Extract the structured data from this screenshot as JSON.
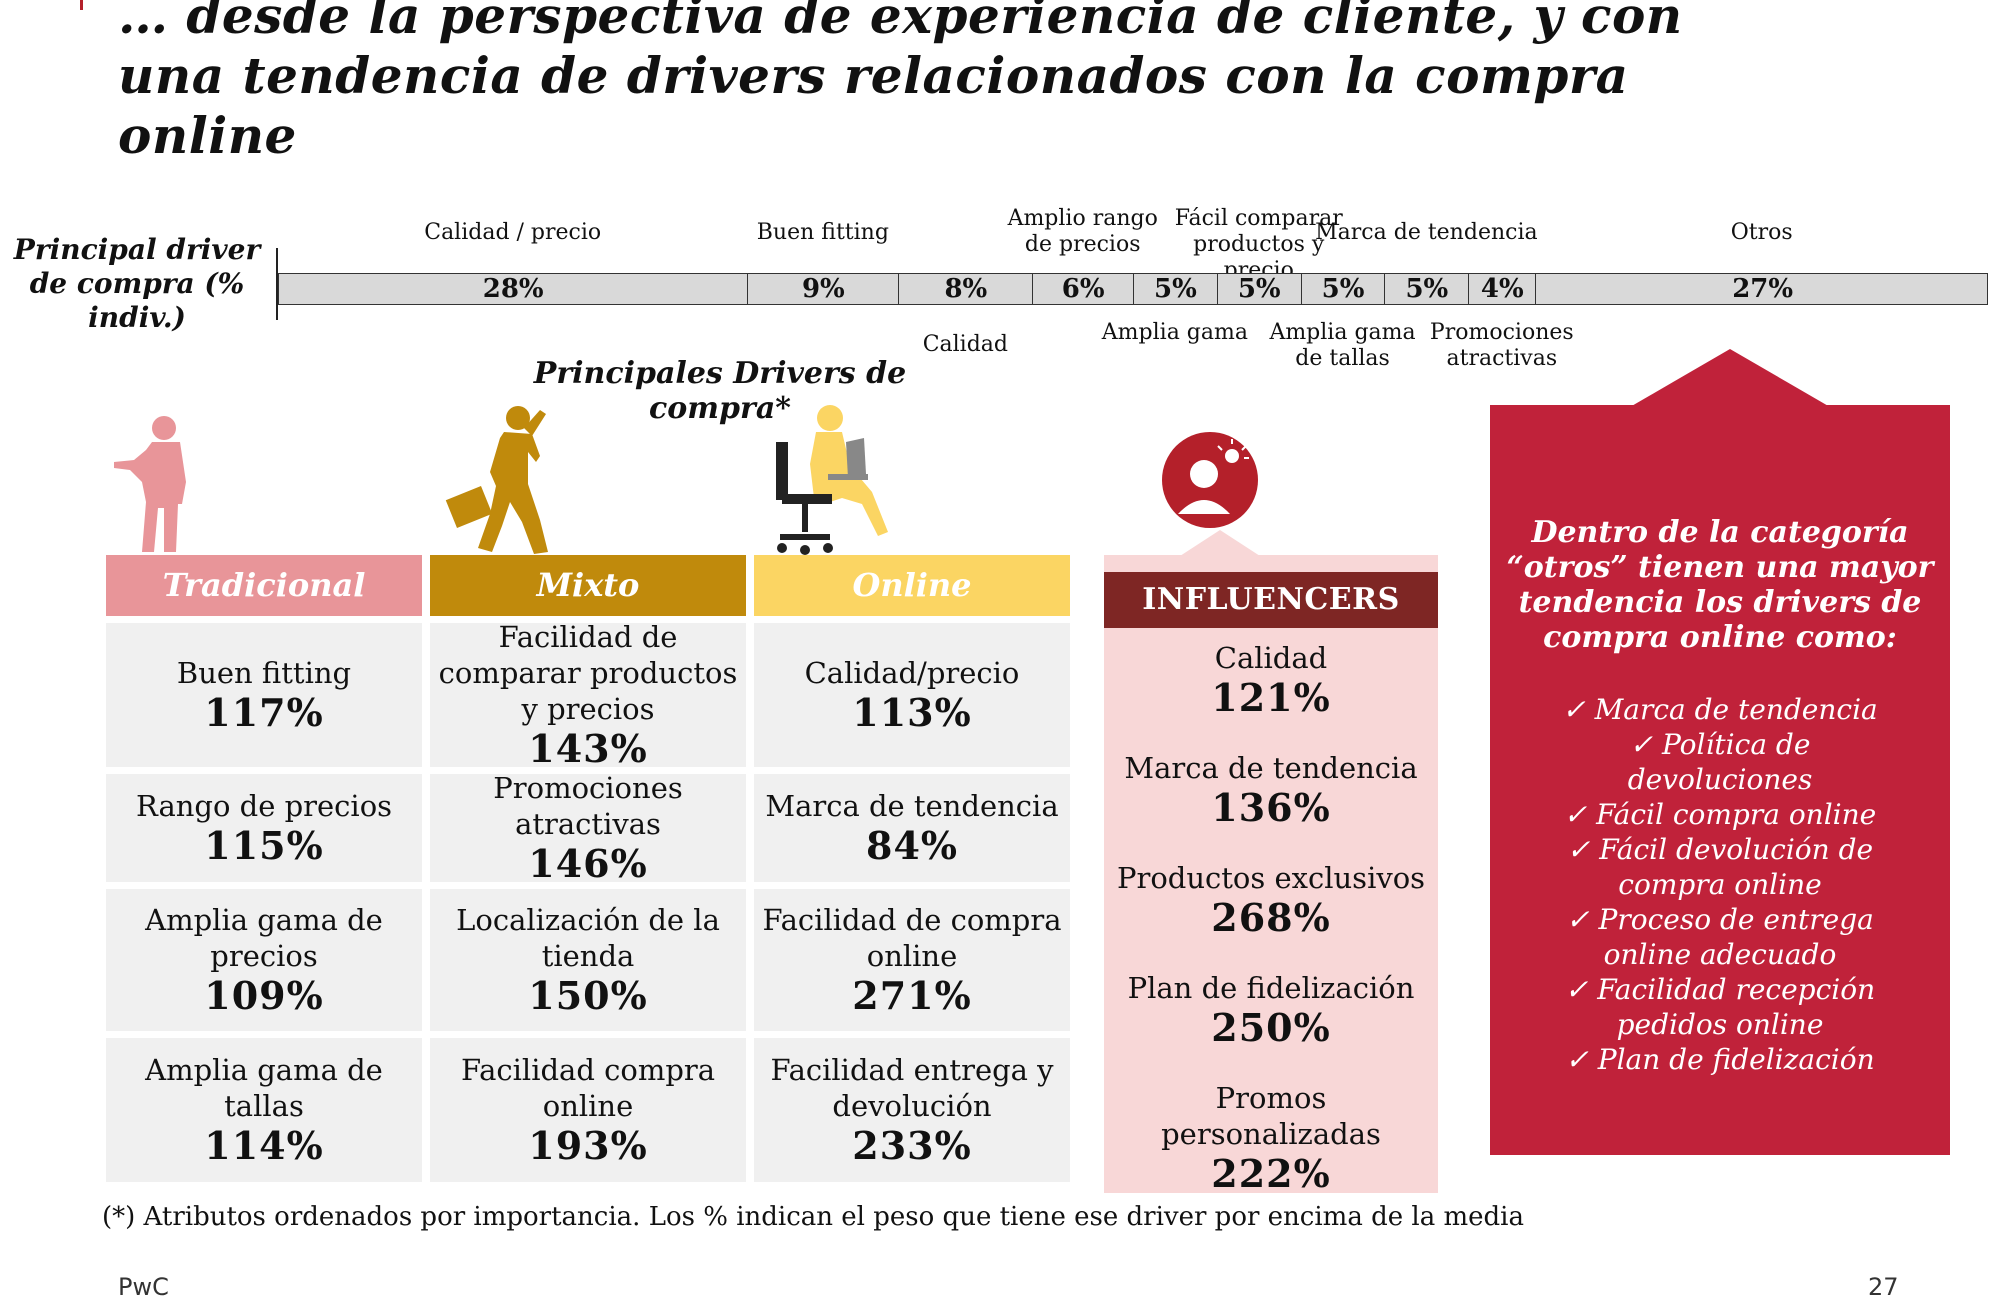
{
  "title": "… desde la perspectiva de experiencia de cliente, y con una tendencia de drivers relacionados con la compra online",
  "bar_label": "Principal driver de compra (% indiv.)",
  "subtitle": "Principales Drivers de compra*",
  "chart_data": {
    "type": "bar",
    "orientation": "horizontal-stacked",
    "categories": [
      "Calidad / precio",
      "Buen fitting",
      "Calidad",
      "Amplio rango de precios",
      "Amplia gama",
      "Fácil comparar productos y precio",
      "Amplia gama de tallas",
      "Marca de tendencia",
      "Promociones atractivas",
      "Otros"
    ],
    "values": [
      28,
      9,
      8,
      6,
      5,
      5,
      5,
      5,
      4,
      27
    ],
    "value_labels": [
      "28%",
      "9%",
      "8%",
      "6%",
      "5%",
      "5%",
      "5%",
      "5%",
      "4%",
      "27%"
    ],
    "label_side": [
      "top",
      "top",
      "bottom",
      "top",
      "bottom",
      "top",
      "bottom",
      "top",
      "bottom",
      "top"
    ],
    "bar_color": "#d9d9d9"
  },
  "segments": [
    {
      "name": "Tradicional",
      "color": "#e89599",
      "icon": "standing-man-icon",
      "items": [
        {
          "label": "Buen fitting",
          "value": "117%"
        },
        {
          "label": "Rango de precios",
          "value": "115%"
        },
        {
          "label": "Amplia gama de precios",
          "value": "109%"
        },
        {
          "label": "Amplia gama de tallas",
          "value": "114%"
        }
      ]
    },
    {
      "name": "Mixto",
      "color": "#c08a0c",
      "icon": "walking-phone-man-icon",
      "items": [
        {
          "label": "Facilidad de comparar productos y precios",
          "value": "143%"
        },
        {
          "label": "Promociones atractivas",
          "value": "146%"
        },
        {
          "label": "Localización de la tienda",
          "value": "150%"
        },
        {
          "label": "Facilidad compra online",
          "value": "193%"
        }
      ]
    },
    {
      "name": "Online",
      "color": "#fbd563",
      "icon": "woman-laptop-icon",
      "items": [
        {
          "label": "Calidad/precio",
          "value": "113%"
        },
        {
          "label": "Marca de tendencia",
          "value": "84%"
        },
        {
          "label": "Facilidad de compra online",
          "value": "271%"
        },
        {
          "label": "Facilidad entrega y devolución",
          "value": "233%"
        }
      ]
    }
  ],
  "influencers": {
    "title": "INFLUENCERS",
    "icon": "person-idea-icon",
    "items": [
      {
        "label": "Calidad",
        "value": "121%"
      },
      {
        "label": "Marca de tendencia",
        "value": "136%"
      },
      {
        "label": "Productos exclusivos",
        "value": "268%"
      },
      {
        "label": "Plan de fidelización",
        "value": "250%"
      },
      {
        "label": "Promos personalizadas",
        "value": "222%"
      }
    ]
  },
  "callout": {
    "heading": "Dentro de la categoría “otros” tienen una mayor tendencia los drivers de compra online como:",
    "items": [
      "✓ Marca de tendencia",
      "✓ Política de devoluciones",
      "✓ Fácil compra online",
      "✓ Fácil devolución de compra online",
      "✓ Proceso de entrega online adecuado",
      "✓ Facilidad recepción pedidos online",
      "✓ Plan de fidelización"
    ],
    "color": "#c0223a"
  },
  "footnote": "(*) Atributos ordenados por importancia. Los % indican el peso que tiene ese driver por encima de la media",
  "footer": {
    "brand": "PwC",
    "page": "27"
  }
}
